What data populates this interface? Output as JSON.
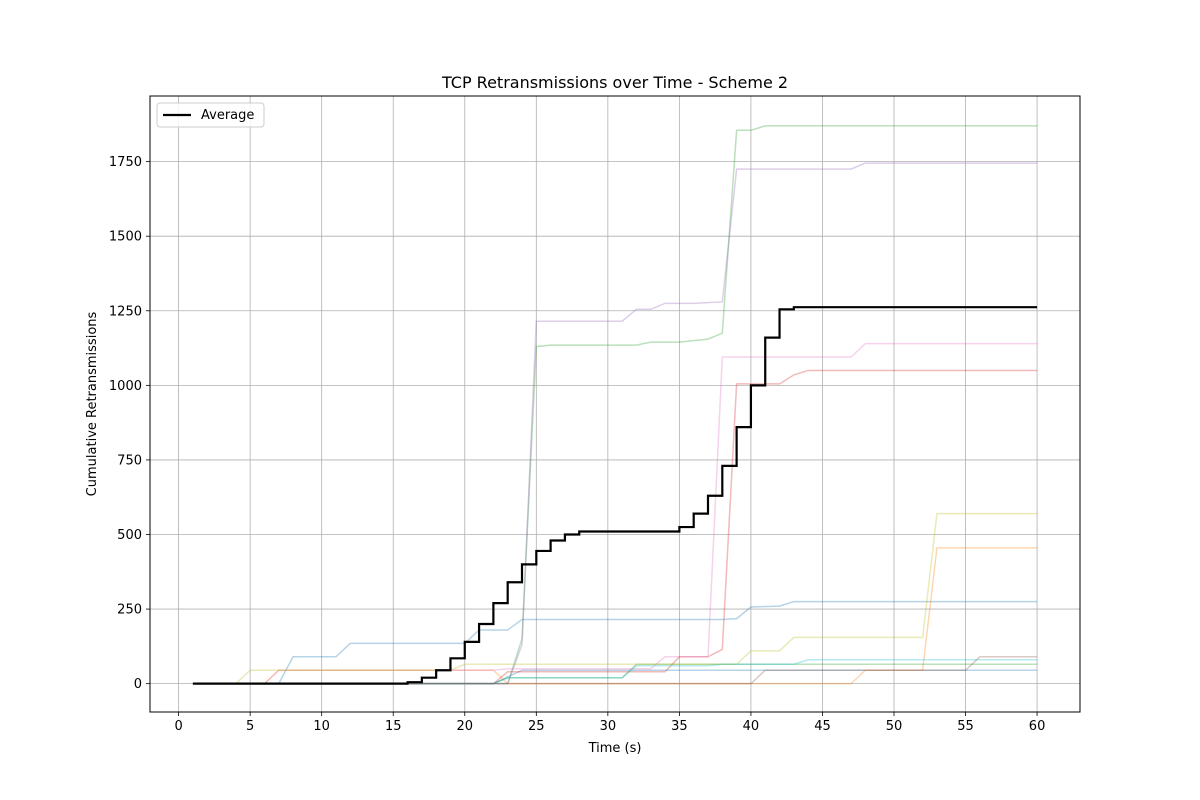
{
  "chart_data": {
    "type": "line",
    "title": "TCP Retransmissions over Time - Scheme 2",
    "xlabel": "Time (s)",
    "ylabel": "Cumulative Retransmissions",
    "xlim": [
      -2,
      63
    ],
    "ylim": [
      -95,
      1970
    ],
    "x_ticks": [
      0,
      5,
      10,
      15,
      20,
      25,
      30,
      35,
      40,
      45,
      50,
      55,
      60
    ],
    "y_ticks": [
      0,
      250,
      500,
      750,
      1000,
      1250,
      1500,
      1750
    ],
    "grid": true,
    "legend": {
      "placement": "top-left",
      "entries": [
        "Average"
      ]
    },
    "series": [
      {
        "name": "Average",
        "color": "#000000",
        "highlight": true,
        "points": [
          [
            1,
            0
          ],
          [
            16,
            0
          ],
          [
            16,
            5
          ],
          [
            17,
            5
          ],
          [
            17,
            20
          ],
          [
            18,
            20
          ],
          [
            18,
            45
          ],
          [
            19,
            45
          ],
          [
            19,
            85
          ],
          [
            20,
            85
          ],
          [
            20,
            140
          ],
          [
            21,
            140
          ],
          [
            21,
            200
          ],
          [
            22,
            200
          ],
          [
            22,
            270
          ],
          [
            23,
            270
          ],
          [
            23,
            340
          ],
          [
            24,
            340
          ],
          [
            24,
            400
          ],
          [
            25,
            400
          ],
          [
            25,
            445
          ],
          [
            26,
            445
          ],
          [
            26,
            480
          ],
          [
            27,
            480
          ],
          [
            27,
            500
          ],
          [
            28,
            500
          ],
          [
            28,
            510
          ],
          [
            35,
            510
          ],
          [
            35,
            525
          ],
          [
            36,
            525
          ],
          [
            36,
            570
          ],
          [
            37,
            570
          ],
          [
            37,
            630
          ],
          [
            38,
            630
          ],
          [
            38,
            730
          ],
          [
            39,
            730
          ],
          [
            39,
            860
          ],
          [
            40,
            860
          ],
          [
            40,
            1000
          ],
          [
            41,
            1000
          ],
          [
            41,
            1160
          ],
          [
            42,
            1160
          ],
          [
            42,
            1255
          ],
          [
            43,
            1255
          ],
          [
            43,
            1262
          ],
          [
            60,
            1262
          ]
        ]
      },
      {
        "color": "#1f77b4",
        "points": [
          [
            1,
            0
          ],
          [
            7,
            0
          ],
          [
            8,
            90
          ],
          [
            11,
            90
          ],
          [
            12,
            135
          ],
          [
            20,
            135
          ],
          [
            21,
            180
          ],
          [
            23,
            180
          ],
          [
            24,
            215
          ],
          [
            38,
            215
          ],
          [
            39,
            218
          ],
          [
            40,
            257
          ],
          [
            42,
            260
          ],
          [
            43,
            275
          ],
          [
            60,
            275
          ]
        ]
      },
      {
        "color": "#1f77b4",
        "points": [
          [
            1,
            0
          ],
          [
            22,
            0
          ],
          [
            24,
            45
          ],
          [
            38,
            45
          ],
          [
            39,
            45
          ],
          [
            60,
            45
          ]
        ]
      },
      {
        "color": "#ff7f0e",
        "points": [
          [
            1,
            0
          ],
          [
            6,
            0
          ],
          [
            7,
            45
          ],
          [
            22,
            45
          ],
          [
            23,
            0
          ],
          [
            46,
            0
          ],
          [
            47,
            0
          ],
          [
            48,
            45
          ],
          [
            52,
            45
          ],
          [
            53,
            455
          ],
          [
            60,
            455
          ]
        ]
      },
      {
        "color": "#2ca02c",
        "points": [
          [
            1,
            0
          ],
          [
            23,
            0
          ],
          [
            24,
            150
          ],
          [
            25,
            1130
          ],
          [
            26,
            1135
          ],
          [
            32,
            1135
          ],
          [
            33,
            1145
          ],
          [
            35,
            1145
          ],
          [
            36,
            1150
          ],
          [
            37,
            1155
          ],
          [
            38,
            1175
          ],
          [
            39,
            1855
          ],
          [
            40,
            1855
          ],
          [
            41,
            1870
          ],
          [
            60,
            1870
          ]
        ]
      },
      {
        "color": "#2ca02c",
        "points": [
          [
            1,
            0
          ],
          [
            22,
            0
          ],
          [
            23,
            20
          ],
          [
            31,
            20
          ],
          [
            32,
            65
          ],
          [
            38,
            65
          ],
          [
            39,
            65
          ],
          [
            60,
            65
          ]
        ]
      },
      {
        "color": "#d62728",
        "points": [
          [
            1,
            0
          ],
          [
            20,
            0
          ],
          [
            22,
            0
          ],
          [
            23,
            40
          ],
          [
            34,
            40
          ],
          [
            35,
            90
          ],
          [
            36,
            90
          ],
          [
            37,
            90
          ],
          [
            38,
            115
          ],
          [
            39,
            1005
          ],
          [
            42,
            1005
          ],
          [
            43,
            1035
          ],
          [
            44,
            1050
          ],
          [
            60,
            1050
          ]
        ]
      },
      {
        "color": "#9467bd",
        "points": [
          [
            1,
            0
          ],
          [
            23,
            0
          ],
          [
            24,
            130
          ],
          [
            25,
            1215
          ],
          [
            31,
            1215
          ],
          [
            32,
            1255
          ],
          [
            33,
            1255
          ],
          [
            34,
            1275
          ],
          [
            36,
            1275
          ],
          [
            38,
            1280
          ],
          [
            39,
            1725
          ],
          [
            47,
            1725
          ],
          [
            48,
            1745
          ],
          [
            60,
            1745
          ]
        ]
      },
      {
        "color": "#e377c2",
        "points": [
          [
            1,
            0
          ],
          [
            6,
            0
          ],
          [
            7,
            45
          ],
          [
            19,
            45
          ],
          [
            20,
            45
          ],
          [
            22,
            45
          ],
          [
            23,
            50
          ],
          [
            33,
            50
          ],
          [
            34,
            90
          ],
          [
            37,
            90
          ],
          [
            38,
            1095
          ],
          [
            47,
            1095
          ],
          [
            48,
            1140
          ],
          [
            60,
            1140
          ]
        ]
      },
      {
        "color": "#bcbd22",
        "points": [
          [
            1,
            0
          ],
          [
            4,
            0
          ],
          [
            5,
            45
          ],
          [
            19,
            45
          ],
          [
            20,
            65
          ],
          [
            38,
            65
          ],
          [
            39,
            65
          ],
          [
            40,
            110
          ],
          [
            42,
            110
          ],
          [
            43,
            155
          ],
          [
            52,
            155
          ],
          [
            53,
            570
          ],
          [
            60,
            570
          ]
        ]
      },
      {
        "color": "#17becf",
        "points": [
          [
            1,
            0
          ],
          [
            22,
            0
          ],
          [
            23,
            20
          ],
          [
            30,
            20
          ],
          [
            31,
            20
          ],
          [
            32,
            60
          ],
          [
            37,
            60
          ],
          [
            38,
            65
          ],
          [
            43,
            65
          ],
          [
            44,
            80
          ],
          [
            60,
            80
          ]
        ]
      },
      {
        "color": "#8c564b",
        "points": [
          [
            1,
            0
          ],
          [
            40,
            0
          ],
          [
            41,
            45
          ],
          [
            55,
            45
          ],
          [
            56,
            90
          ],
          [
            60,
            90
          ]
        ]
      }
    ]
  }
}
